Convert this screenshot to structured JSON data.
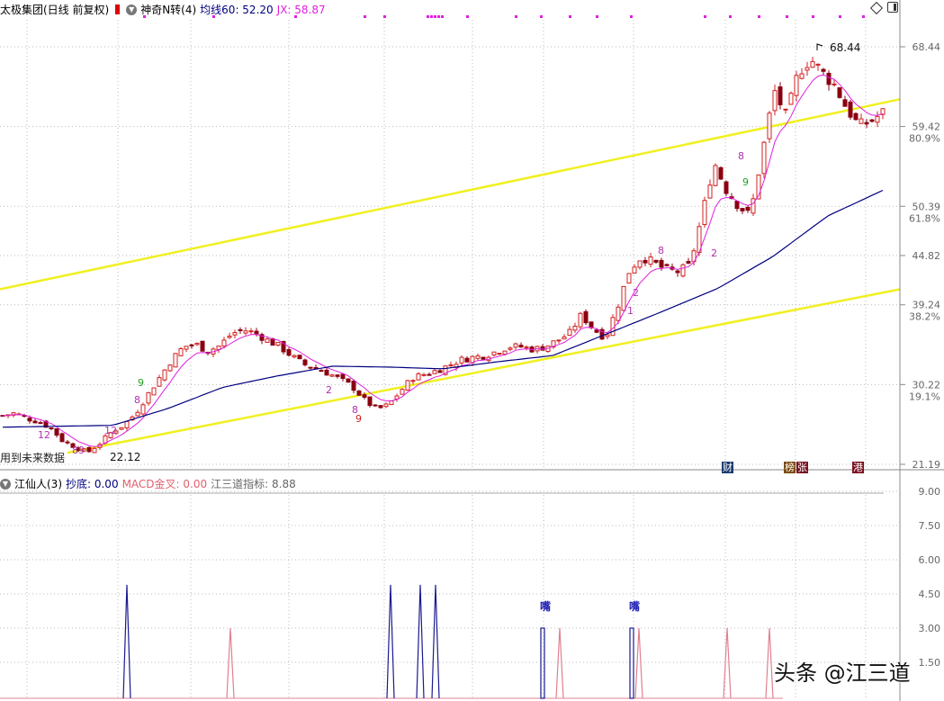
{
  "header": {
    "stock": "太极集团(日线 前复权)",
    "indicator": "神奇N转(4)",
    "ma_label": "均线60: 52.20",
    "jx_label": "JX: 58.87",
    "ma_color": "#000080",
    "jx_color": "#e020e0"
  },
  "sub_header": {
    "indicator": "江仙人(3)",
    "chaodi": "抄底: 0.00",
    "macd": "MACD金叉: 0.00",
    "jsd": "江三道指标: 8.88"
  },
  "labels": {
    "future_data": "用到未来数据",
    "low_price": "22.12",
    "high_price": "68.44",
    "mouth": "嘴",
    "watermark": "头条 @江三道"
  },
  "event_tags": [
    {
      "text": "财",
      "color": "#1a3a6e"
    },
    {
      "text": "榜",
      "color": "#7a4a10"
    },
    {
      "text": "张",
      "color": "#7a1020"
    },
    {
      "text": "港",
      "color": "#7a1020"
    }
  ],
  "chart_data": [
    {
      "type": "candlestick",
      "y_axis": {
        "ticks": [
          68.44,
          59.42,
          50.39,
          44.82,
          39.24,
          30.22,
          21.19
        ],
        "fib_labels": {
          "59.42": "80.9%",
          "50.39": "61.8%",
          "39.24": "38.2%",
          "30.22": "19.1%"
        },
        "ylim": [
          21.19,
          68.44
        ]
      },
      "close_path": [
        26.7,
        27.0,
        26.4,
        26.0,
        25.3,
        23.8,
        23.2,
        22.5,
        23.5,
        24.8,
        25.6,
        26.9,
        29.0,
        31.0,
        33.0,
        34.5,
        34.8,
        34.0,
        34.6,
        36.0,
        36.4,
        36.0,
        35.2,
        34.5,
        33.4,
        32.5,
        32.0,
        31.5,
        30.8,
        30.0,
        28.5,
        27.4,
        27.9,
        29.5,
        31.0,
        31.4,
        31.8,
        32.4,
        33.0,
        33.3,
        33.5,
        34.0,
        34.5,
        34.5,
        34.2,
        34.5,
        35.2,
        36.0,
        38.1,
        36.5,
        35.5,
        39.1,
        43.2,
        44.7,
        44.0,
        43.2,
        43.0,
        43.7,
        49.3,
        55.4,
        52.3,
        50.5,
        49.3,
        56.4,
        63.5,
        60.5,
        65.6,
        67.1,
        65.5,
        64.1,
        61.5,
        59.5,
        60.0,
        61.0
      ],
      "ma60_path": [
        25.4,
        25.5,
        25.6,
        27.5,
        29.9,
        31.2,
        32.3,
        32.2,
        32.0,
        32.8,
        33.5,
        36.0,
        38.5,
        41.1,
        44.7,
        49.3,
        52.2
      ],
      "upper_channel": [
        41.0,
        62.5
      ],
      "lower_channel": [
        21.0,
        41.0
      ],
      "signal_numbers": [
        "12",
        "89",
        "12",
        "8",
        "9",
        "2",
        "8",
        "9",
        "1",
        "2",
        "8",
        "2",
        "8",
        "9"
      ]
    },
    {
      "type": "bar",
      "y_axis": {
        "ticks": [
          "9.00",
          "7.50",
          "6.00",
          "4.50",
          "3.00",
          "1.50"
        ],
        "ylim": [
          0,
          9
        ]
      },
      "navy_spikes": [
        4.9,
        4.9,
        4.9,
        4.9
      ],
      "pink_spikes": [
        3.0,
        3.0,
        3.0,
        3.0,
        3.0
      ],
      "navy_boxes": [
        3.0,
        3.0
      ]
    }
  ]
}
